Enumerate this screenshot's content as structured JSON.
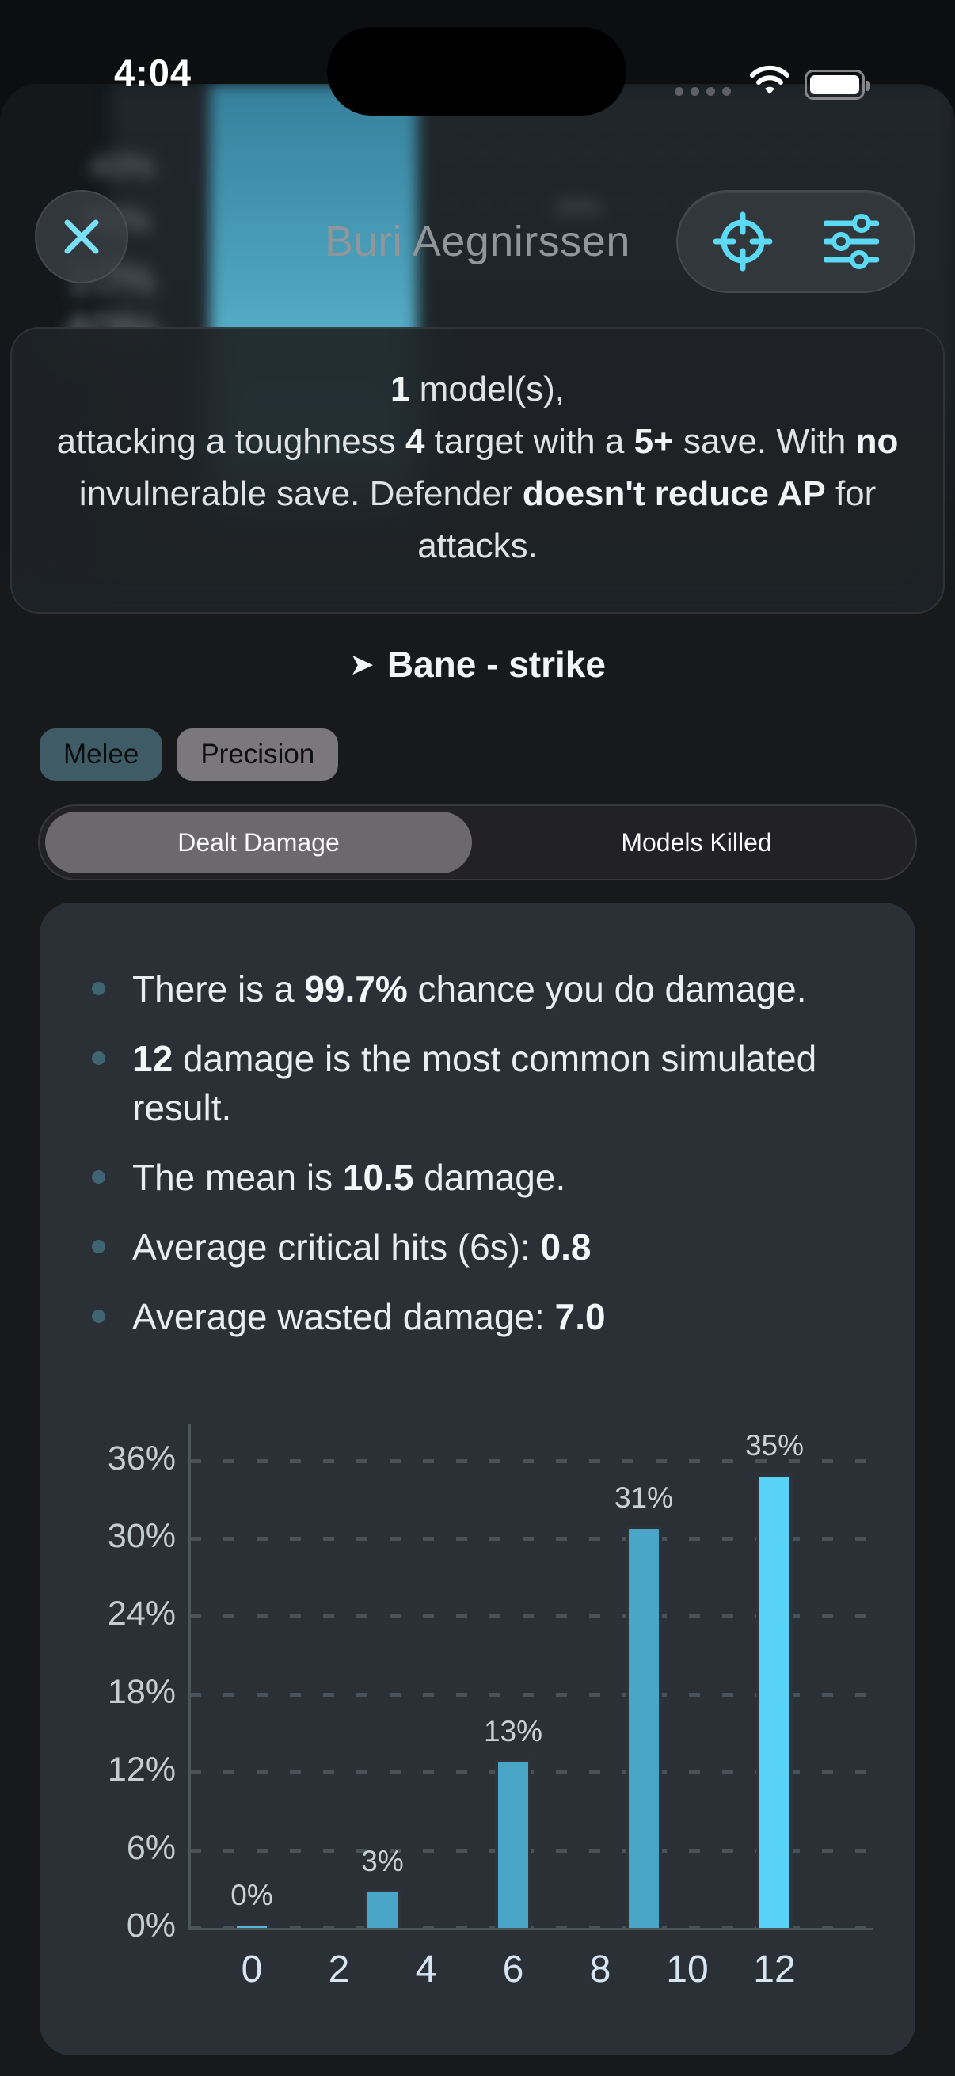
{
  "colors": {
    "accent_cyan": "#5bd9f5",
    "card_bg": "#2a3036",
    "sheet_bg": "#18191b"
  },
  "status_bar": {
    "time": "4:04"
  },
  "backdrop": {
    "ghost_labels": [
      {
        "text": "40%"
      },
      {
        "text": "30%"
      },
      {
        "text": "10%"
      },
      {
        "text": "40%"
      },
      {
        "text": "28%"
      }
    ]
  },
  "header": {
    "title": "Buri Aegnirssen"
  },
  "info_card": {
    "line1": [
      {
        "t": "1",
        "b": true
      },
      {
        "t": " model(s),",
        "b": false
      }
    ],
    "line2": [
      {
        "t": "attacking a toughness ",
        "b": false
      },
      {
        "t": "4",
        "b": true
      },
      {
        "t": " target with a ",
        "b": false
      },
      {
        "t": "5+",
        "b": true
      },
      {
        "t": " save. With ",
        "b": false
      },
      {
        "t": "no",
        "b": true
      },
      {
        "t": " invulnerable save. Defender ",
        "b": false
      },
      {
        "t": "doesn't reduce AP",
        "b": true
      },
      {
        "t": " for attacks.",
        "b": false
      }
    ]
  },
  "section": {
    "arrow": "➤",
    "title": "Bane - strike"
  },
  "tags": [
    {
      "label": "Melee",
      "bg": "#3f5b66"
    },
    {
      "label": "Precision",
      "bg": "#7b787d"
    }
  ],
  "segmented": {
    "options": [
      {
        "label": "Dealt Damage",
        "selected": true
      },
      {
        "label": "Models Killed",
        "selected": false
      }
    ]
  },
  "stats": {
    "bullets": [
      [
        {
          "t": "There is a ",
          "b": false
        },
        {
          "t": "99.7%",
          "b": true
        },
        {
          "t": " chance you do damage.",
          "b": false
        }
      ],
      [
        {
          "t": "12",
          "b": true
        },
        {
          "t": " damage is the most common simulated result.",
          "b": false
        }
      ],
      [
        {
          "t": "The mean is ",
          "b": false
        },
        {
          "t": "10.5",
          "b": true
        },
        {
          "t": " damage.",
          "b": false
        }
      ],
      [
        {
          "t": "Average critical hits (6s): ",
          "b": false
        },
        {
          "t": "0.8",
          "b": true
        }
      ],
      [
        {
          "t": "Average wasted damage: ",
          "b": false
        },
        {
          "t": "7.0",
          "b": true
        }
      ]
    ]
  },
  "chart_data": {
    "type": "bar",
    "x": [
      0,
      3,
      6,
      9,
      12
    ],
    "values": [
      0.3,
      3,
      13,
      31,
      35
    ],
    "bar_labels": [
      "0%",
      "3%",
      "13%",
      "31%",
      "35%"
    ],
    "bar_colors": [
      "#56b7d8",
      "#4aa6c6",
      "#4aa6c6",
      "#4aa6c6",
      "#58d3f7"
    ],
    "xticks": [
      0,
      2,
      4,
      6,
      8,
      10,
      12
    ],
    "yticks": [
      0,
      6,
      12,
      18,
      24,
      30,
      36
    ],
    "ytick_labels": [
      "0%",
      "6%",
      "12%",
      "18%",
      "24%",
      "30%",
      "36%"
    ],
    "ylim": [
      0,
      38
    ],
    "xlabel": "",
    "ylabel": "",
    "grid": "dashed-horizontal",
    "legend": "none",
    "bar_border_color": "#2d3338",
    "grid_color": "#49525a",
    "axis_color": "#4e565d"
  }
}
